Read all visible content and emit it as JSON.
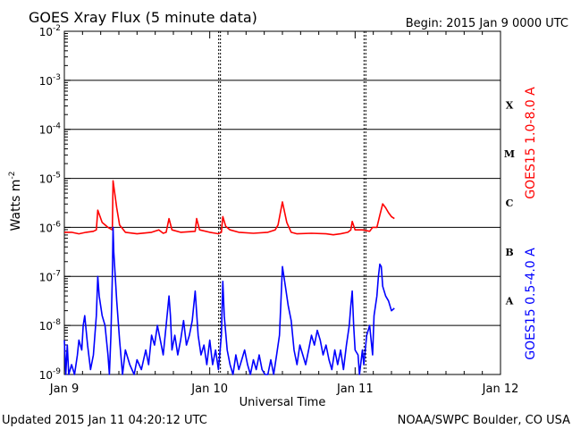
{
  "chart_data": {
    "type": "line",
    "title": "GOES Xray Flux (5 minute data)",
    "begin": "Begin:  2015 Jan 9 0000 UTC",
    "updated": "Updated 2015 Jan 11 04:20:12 UTC",
    "credit": "NOAA/SWPC Boulder, CO USA",
    "xlabel": "Universal Time",
    "ylabel": "Watts m",
    "ylabel_exp": "-2",
    "x_ticks": [
      "Jan 9",
      "Jan 10",
      "Jan 11",
      "Jan 12"
    ],
    "y_ticks": [
      {
        "base": "10",
        "exp": "-9",
        "log": -9
      },
      {
        "base": "10",
        "exp": "-8",
        "log": -8
      },
      {
        "base": "10",
        "exp": "-7",
        "log": -7
      },
      {
        "base": "10",
        "exp": "-6",
        "log": -6
      },
      {
        "base": "10",
        "exp": "-5",
        "log": -5
      },
      {
        "base": "10",
        "exp": "-4",
        "log": -4
      },
      {
        "base": "10",
        "exp": "-3",
        "log": -3
      },
      {
        "base": "10",
        "exp": "-2",
        "log": -2
      }
    ],
    "xlim_days": [
      0,
      3
    ],
    "ylim_log": [
      -9,
      -2
    ],
    "y_scale": "log",
    "flare_classes": [
      {
        "label": "X",
        "log_center": -3.5
      },
      {
        "label": "M",
        "log_center": -4.5
      },
      {
        "label": "C",
        "log_center": -5.5
      },
      {
        "label": "B",
        "log_center": -6.5
      },
      {
        "label": "A",
        "log_center": -7.5
      }
    ],
    "grid": "horizontal lines at each decade above 1e-9; dotted vertical lines at day boundaries",
    "series": [
      {
        "name": "GOES15 1.0-8.0 A",
        "color": "#ff0000",
        "points": [
          [
            0.0,
            -6.1
          ],
          [
            0.05,
            -6.1
          ],
          [
            0.1,
            -6.13
          ],
          [
            0.15,
            -6.1
          ],
          [
            0.2,
            -6.08
          ],
          [
            0.22,
            -6.05
          ],
          [
            0.23,
            -5.65
          ],
          [
            0.26,
            -5.9
          ],
          [
            0.3,
            -6.0
          ],
          [
            0.33,
            -6.05
          ],
          [
            0.335,
            -5.05
          ],
          [
            0.36,
            -5.6
          ],
          [
            0.38,
            -5.95
          ],
          [
            0.42,
            -6.1
          ],
          [
            0.5,
            -6.13
          ],
          [
            0.6,
            -6.1
          ],
          [
            0.65,
            -6.05
          ],
          [
            0.68,
            -6.12
          ],
          [
            0.7,
            -6.1
          ],
          [
            0.72,
            -5.82
          ],
          [
            0.74,
            -6.05
          ],
          [
            0.8,
            -6.1
          ],
          [
            0.9,
            -6.08
          ],
          [
            0.91,
            -5.82
          ],
          [
            0.93,
            -6.05
          ],
          [
            1.0,
            -6.1
          ],
          [
            1.04,
            -6.12
          ],
          [
            1.06,
            -6.13
          ],
          [
            1.08,
            -6.1
          ],
          [
            1.09,
            -5.78
          ],
          [
            1.11,
            -5.98
          ],
          [
            1.14,
            -6.05
          ],
          [
            1.2,
            -6.1
          ],
          [
            1.3,
            -6.12
          ],
          [
            1.4,
            -6.1
          ],
          [
            1.45,
            -6.05
          ],
          [
            1.47,
            -5.95
          ],
          [
            1.5,
            -5.48
          ],
          [
            1.53,
            -5.9
          ],
          [
            1.56,
            -6.1
          ],
          [
            1.6,
            -6.13
          ],
          [
            1.7,
            -6.12
          ],
          [
            1.8,
            -6.13
          ],
          [
            1.85,
            -6.15
          ],
          [
            1.9,
            -6.13
          ],
          [
            1.95,
            -6.1
          ],
          [
            1.97,
            -6.05
          ],
          [
            1.98,
            -5.88
          ],
          [
            2.0,
            -6.05
          ],
          [
            2.05,
            -6.05
          ],
          [
            2.1,
            -6.08
          ],
          [
            2.12,
            -6.0
          ],
          [
            2.15,
            -6.0
          ],
          [
            2.17,
            -5.75
          ],
          [
            2.19,
            -5.52
          ],
          [
            2.21,
            -5.6
          ],
          [
            2.23,
            -5.7
          ],
          [
            2.25,
            -5.78
          ],
          [
            2.27,
            -5.82
          ]
        ]
      },
      {
        "name": "GOES15 0.5-4.0 A",
        "color": "#0000ff",
        "points": [
          [
            0.0,
            -8.3
          ],
          [
            0.01,
            -9.0
          ],
          [
            0.02,
            -8.4
          ],
          [
            0.03,
            -9.0
          ],
          [
            0.05,
            -8.8
          ],
          [
            0.07,
            -9.0
          ],
          [
            0.09,
            -8.6
          ],
          [
            0.1,
            -8.3
          ],
          [
            0.12,
            -8.5
          ],
          [
            0.13,
            -8.0
          ],
          [
            0.14,
            -7.8
          ],
          [
            0.16,
            -8.4
          ],
          [
            0.18,
            -8.9
          ],
          [
            0.2,
            -8.6
          ],
          [
            0.22,
            -7.8
          ],
          [
            0.23,
            -7.0
          ],
          [
            0.24,
            -7.4
          ],
          [
            0.26,
            -7.8
          ],
          [
            0.28,
            -8.0
          ],
          [
            0.3,
            -8.6
          ],
          [
            0.31,
            -9.0
          ],
          [
            0.32,
            -8.2
          ],
          [
            0.33,
            -7.0
          ],
          [
            0.335,
            -6.0
          ],
          [
            0.34,
            -6.5
          ],
          [
            0.36,
            -7.5
          ],
          [
            0.38,
            -8.3
          ],
          [
            0.4,
            -9.0
          ],
          [
            0.42,
            -8.5
          ],
          [
            0.45,
            -8.8
          ],
          [
            0.48,
            -9.0
          ],
          [
            0.5,
            -8.7
          ],
          [
            0.53,
            -8.9
          ],
          [
            0.56,
            -8.5
          ],
          [
            0.58,
            -8.8
          ],
          [
            0.6,
            -8.2
          ],
          [
            0.62,
            -8.4
          ],
          [
            0.64,
            -8.0
          ],
          [
            0.66,
            -8.3
          ],
          [
            0.68,
            -8.6
          ],
          [
            0.7,
            -8.0
          ],
          [
            0.72,
            -7.4
          ],
          [
            0.73,
            -7.8
          ],
          [
            0.74,
            -8.5
          ],
          [
            0.76,
            -8.2
          ],
          [
            0.78,
            -8.6
          ],
          [
            0.8,
            -8.3
          ],
          [
            0.82,
            -7.9
          ],
          [
            0.84,
            -8.4
          ],
          [
            0.86,
            -8.2
          ],
          [
            0.88,
            -7.9
          ],
          [
            0.9,
            -7.3
          ],
          [
            0.92,
            -8.2
          ],
          [
            0.94,
            -8.6
          ],
          [
            0.96,
            -8.4
          ],
          [
            0.98,
            -8.8
          ],
          [
            1.0,
            -8.3
          ],
          [
            1.02,
            -8.8
          ],
          [
            1.04,
            -8.5
          ],
          [
            1.06,
            -8.9
          ],
          [
            1.08,
            -8.2
          ],
          [
            1.09,
            -7.1
          ],
          [
            1.1,
            -7.8
          ],
          [
            1.12,
            -8.5
          ],
          [
            1.14,
            -8.8
          ],
          [
            1.16,
            -9.0
          ],
          [
            1.18,
            -8.6
          ],
          [
            1.2,
            -8.9
          ],
          [
            1.22,
            -8.7
          ],
          [
            1.24,
            -8.5
          ],
          [
            1.26,
            -8.8
          ],
          [
            1.28,
            -9.0
          ],
          [
            1.3,
            -8.7
          ],
          [
            1.32,
            -8.9
          ],
          [
            1.34,
            -8.6
          ],
          [
            1.36,
            -8.9
          ],
          [
            1.38,
            -9.0
          ],
          [
            1.4,
            -9.0
          ],
          [
            1.42,
            -8.7
          ],
          [
            1.44,
            -9.0
          ],
          [
            1.46,
            -8.6
          ],
          [
            1.48,
            -8.2
          ],
          [
            1.5,
            -6.8
          ],
          [
            1.52,
            -7.2
          ],
          [
            1.54,
            -7.6
          ],
          [
            1.56,
            -7.9
          ],
          [
            1.58,
            -8.5
          ],
          [
            1.6,
            -8.8
          ],
          [
            1.62,
            -8.4
          ],
          [
            1.64,
            -8.6
          ],
          [
            1.66,
            -8.8
          ],
          [
            1.68,
            -8.5
          ],
          [
            1.7,
            -8.2
          ],
          [
            1.72,
            -8.4
          ],
          [
            1.74,
            -8.1
          ],
          [
            1.76,
            -8.3
          ],
          [
            1.78,
            -8.6
          ],
          [
            1.8,
            -8.4
          ],
          [
            1.82,
            -8.7
          ],
          [
            1.84,
            -8.9
          ],
          [
            1.86,
            -8.5
          ],
          [
            1.88,
            -8.8
          ],
          [
            1.9,
            -8.5
          ],
          [
            1.92,
            -8.9
          ],
          [
            1.94,
            -8.4
          ],
          [
            1.96,
            -8.0
          ],
          [
            1.97,
            -7.6
          ],
          [
            1.98,
            -7.3
          ],
          [
            1.99,
            -8.0
          ],
          [
            2.0,
            -8.5
          ],
          [
            2.02,
            -8.6
          ],
          [
            2.03,
            -9.0
          ],
          [
            2.05,
            -8.5
          ],
          [
            2.06,
            -8.8
          ],
          [
            2.08,
            -8.2
          ],
          [
            2.1,
            -8.0
          ],
          [
            2.12,
            -8.6
          ],
          [
            2.13,
            -7.8
          ],
          [
            2.15,
            -7.4
          ],
          [
            2.16,
            -7.0
          ],
          [
            2.17,
            -6.75
          ],
          [
            2.18,
            -6.8
          ],
          [
            2.19,
            -7.2
          ],
          [
            2.21,
            -7.4
          ],
          [
            2.23,
            -7.5
          ],
          [
            2.25,
            -7.7
          ],
          [
            2.27,
            -7.65
          ]
        ]
      }
    ]
  }
}
